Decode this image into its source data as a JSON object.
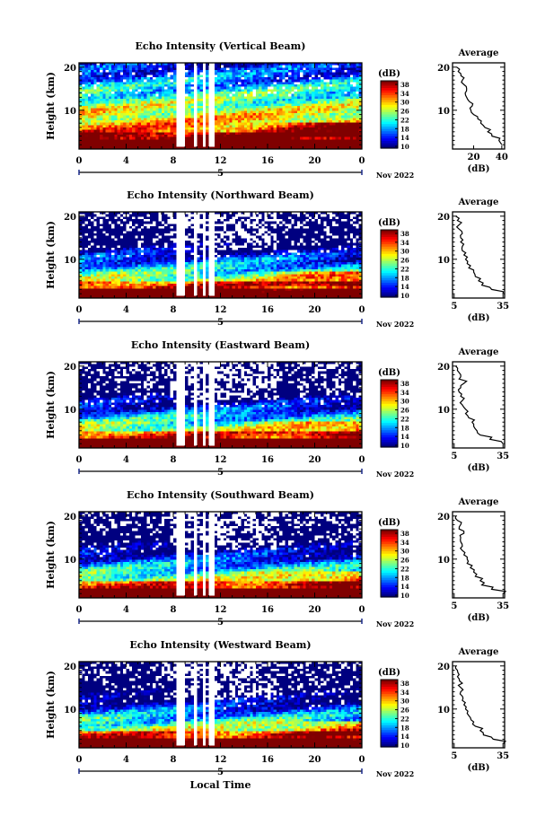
{
  "figure": {
    "date_label": "Nov 2022",
    "day_label": "5",
    "xlabel": "Local Time",
    "ylabel": "Height (km)",
    "colorbar_label": "(dB)",
    "colorbar_ticks": [
      "38",
      "34",
      "30",
      "26",
      "22",
      "18",
      "14",
      "10"
    ],
    "avg_title": "Average",
    "avg_xlabel": "(dB)",
    "x_ticks": [
      "0",
      "4",
      "8",
      "12",
      "16",
      "20",
      "0"
    ],
    "y_ticks": [
      "20",
      "10"
    ]
  },
  "chart_data": [
    {
      "type": "heatmap",
      "title": "Echo Intensity (Vertical Beam)",
      "xlim": [
        0,
        24
      ],
      "ylim": [
        2,
        20
      ],
      "colorscale": {
        "min": 10,
        "max": 38,
        "unit": "dB"
      },
      "profile": {
        "heights": [
          2,
          3,
          4,
          5,
          6,
          7,
          8,
          9,
          10,
          11,
          12,
          13,
          14,
          15,
          16,
          17,
          18,
          19,
          20
        ],
        "values": [
          40,
          38,
          33,
          30,
          28,
          25,
          23,
          20,
          18,
          19,
          17,
          15,
          14,
          15,
          13,
          12,
          11,
          9,
          8
        ],
        "xlim": [
          5,
          42
        ],
        "xticks": [
          "20",
          "40"
        ]
      }
    },
    {
      "type": "heatmap",
      "title": "Echo Intensity (Northward Beam)",
      "xlim": [
        0,
        24
      ],
      "ylim": [
        2,
        20
      ],
      "colorscale": {
        "min": 10,
        "max": 38,
        "unit": "dB"
      },
      "profile": {
        "heights": [
          2,
          3,
          4,
          5,
          6,
          7,
          8,
          9,
          10,
          11,
          12,
          13,
          14,
          15,
          16,
          17,
          18,
          19,
          20
        ],
        "values": [
          35,
          28,
          22,
          20,
          18,
          17,
          14,
          13,
          12,
          11,
          10,
          10,
          9,
          9,
          10,
          8,
          8,
          7,
          6
        ],
        "xlim": [
          4,
          36
        ],
        "xticks": [
          "5",
          "35"
        ]
      }
    },
    {
      "type": "heatmap",
      "title": "Echo Intensity (Eastward Beam)",
      "xlim": [
        0,
        24
      ],
      "ylim": [
        2,
        20
      ],
      "colorscale": {
        "min": 10,
        "max": 38,
        "unit": "dB"
      },
      "profile": {
        "heights": [
          2,
          3,
          4,
          5,
          6,
          7,
          8,
          9,
          10,
          11,
          12,
          13,
          14,
          15,
          16,
          17,
          18,
          19,
          20
        ],
        "values": [
          35,
          27,
          21,
          19,
          17,
          16,
          14,
          12,
          12,
          10,
          10,
          9,
          8,
          9,
          11,
          8,
          9,
          7,
          6
        ],
        "xlim": [
          4,
          36
        ],
        "xticks": [
          "5",
          "35"
        ]
      }
    },
    {
      "type": "heatmap",
      "title": "Echo Intensity (Southward Beam)",
      "xlim": [
        0,
        24
      ],
      "ylim": [
        2,
        20
      ],
      "colorscale": {
        "min": 10,
        "max": 38,
        "unit": "dB"
      },
      "profile": {
        "heights": [
          2,
          3,
          4,
          5,
          6,
          7,
          8,
          9,
          10,
          11,
          12,
          13,
          14,
          15,
          16,
          17,
          18,
          19,
          20
        ],
        "values": [
          35,
          28,
          22,
          21,
          18,
          17,
          15,
          13,
          13,
          11,
          10,
          10,
          9,
          9,
          11,
          8,
          9,
          7,
          6
        ],
        "xlim": [
          4,
          36
        ],
        "xticks": [
          "5",
          "35"
        ]
      }
    },
    {
      "type": "heatmap",
      "title": "Echo Intensity (Westward Beam)",
      "xlim": [
        0,
        24
      ],
      "ylim": [
        2,
        20
      ],
      "colorscale": {
        "min": 10,
        "max": 38,
        "unit": "dB"
      },
      "profile": {
        "heights": [
          2,
          3,
          4,
          5,
          6,
          7,
          8,
          9,
          10,
          11,
          12,
          13,
          14,
          15,
          16,
          17,
          18,
          19,
          20
        ],
        "values": [
          35,
          29,
          23,
          21,
          18,
          17,
          15,
          13,
          12,
          11,
          10,
          10,
          9,
          9,
          10,
          8,
          8,
          7,
          6
        ],
        "xlim": [
          4,
          36
        ],
        "xticks": [
          "5",
          "35"
        ]
      }
    }
  ]
}
